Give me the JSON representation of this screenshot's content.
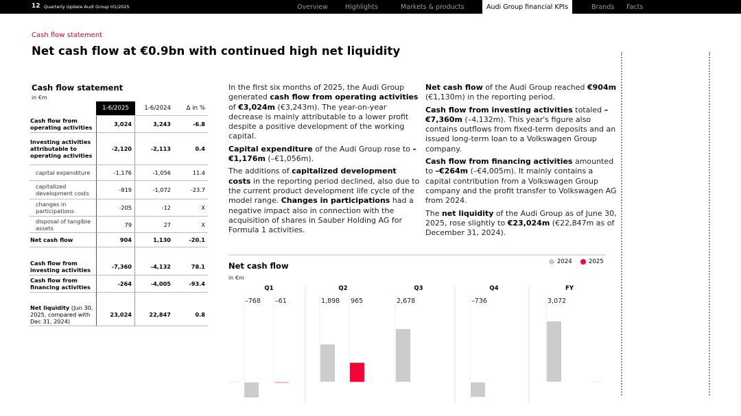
{
  "header": {
    "page_number": "12",
    "doc_title": "Quarterly Update Audi Group H1/2025",
    "nav": [
      "Overview",
      "Highlights",
      "Markets & products",
      "Audi Group financial KPIs",
      "Brands",
      "Facts"
    ],
    "active_nav": "Audi Group financial KPIs"
  },
  "section_label": "Cash flow statement",
  "page_title": "Net cash flow at €0.9bn with continued high net liquidity",
  "table": {
    "title": "Cash flow statement",
    "unit": "in €m",
    "headers": [
      "1-6/2025",
      "1-6/2024",
      "Δ in %"
    ],
    "rows": [
      {
        "label": "Cash flow from operating activities",
        "values": [
          "3,024",
          "3,243",
          "-6.8"
        ],
        "type": "b"
      },
      {
        "label": "Investing activities attributable to operating activities",
        "values": [
          "-2,120",
          "-2,113",
          "0.4"
        ],
        "type": "b"
      },
      {
        "label": "capital expenditure",
        "values": [
          "-1,176",
          "-1,056",
          "11.4"
        ],
        "type": "sub"
      },
      {
        "label": "capitalized development costs",
        "values": [
          "-819",
          "-1,072",
          "-23.7"
        ],
        "type": "sub"
      },
      {
        "label": "changes in participations",
        "values": [
          "-205",
          "-12",
          "X"
        ],
        "type": "sub"
      },
      {
        "label": "disposal of tangible assets",
        "values": [
          "79",
          "27",
          "X"
        ],
        "type": "sub"
      },
      {
        "label": "Net cash flow",
        "values": [
          "904",
          "1,130",
          "-20.1"
        ],
        "type": "b"
      },
      {
        "type": "gap"
      },
      {
        "label": "Cash flow from investing activities",
        "values": [
          "-7,360",
          "-4,132",
          "78.1"
        ],
        "type": "b"
      },
      {
        "label": "Cash flow from financing activities",
        "values": [
          "-264",
          "-4,005",
          "-93.4"
        ],
        "type": "b"
      },
      {
        "type": "gap"
      },
      {
        "label": "Net liquidity",
        "label_suffix": " (Jun 30, 2025, compared with Dec 31, 2024)",
        "values": [
          "23,024",
          "22,847",
          "0.8"
        ],
        "type": "b"
      }
    ]
  },
  "text_col1": [
    [
      {
        "t": "In the first six months of 2025, the Audi Group generated "
      },
      {
        "t": "cash flow from operating activities",
        "b": true
      },
      {
        "t": " of "
      },
      {
        "t": "€3,024m",
        "b": true
      },
      {
        "t": " (€3,243m). The year-on-year decrease is mainly attributable to a lower profit despite a positive development of the working capital."
      }
    ],
    [
      {
        "t": "Capital expenditure",
        "b": true
      },
      {
        "t": " of the Audi Group rose to "
      },
      {
        "t": "–€1,176m",
        "b": true
      },
      {
        "t": " (–€1,056m)."
      }
    ],
    [
      {
        "t": "The additions of "
      },
      {
        "t": "capitalized development costs",
        "b": true
      },
      {
        "t": " in the reporting period declined, also due to the current product development life cycle of the model range. "
      },
      {
        "t": "Changes in participations",
        "b": true
      },
      {
        "t": " had a negative impact also in connection with the acquisition of shares in Sauber Holding AG for Formula 1 activities."
      }
    ]
  ],
  "text_col2": [
    [
      {
        "t": "Net cash flow",
        "b": true
      },
      {
        "t": " of the Audi Group reached "
      },
      {
        "t": "€904m",
        "b": true
      },
      {
        "t": " (€1,130m) in the reporting period."
      }
    ],
    [
      {
        "t": "Cash flow from investing activities",
        "b": true
      },
      {
        "t": " totaled "
      },
      {
        "t": "–€7,360m",
        "b": true
      },
      {
        "t": " (–4,132m). This year's figure also contains outflows from fixed-term deposits and an issued long-term loan to a Volkswagen Group company."
      }
    ],
    [
      {
        "t": "Cash flow from financing activities",
        "b": true
      },
      {
        "t": " amounted to "
      },
      {
        "t": "–€264m",
        "b": true
      },
      {
        "t": " (–€4,005m). It mainly contains a capital contribution from a Volkswagen Group company and the profit transfer to Volkswagen AG from 2024."
      }
    ],
    [
      {
        "t": "The "
      },
      {
        "t": "net liquidity",
        "b": true
      },
      {
        "t": " of the Audi Group as of June 30, 2025, rose slightly to "
      },
      {
        "t": "€23,024m",
        "b": true
      },
      {
        "t": " (€22,847m as of December 31, 2024)."
      }
    ]
  ],
  "chart_data": {
    "type": "bar",
    "title": "Net cash flow",
    "ylabel": "in €m",
    "categories": [
      "Q1",
      "Q2",
      "Q3",
      "Q4",
      "FY"
    ],
    "series": [
      {
        "name": "2024",
        "color": "#cccccc",
        "values": [
          -768,
          1898,
          2678,
          -736,
          3072
        ],
        "labels": [
          "–768",
          "1,898",
          "2,678",
          "–736",
          "3,072"
        ]
      },
      {
        "name": "2025",
        "color": "#f50537",
        "values": [
          -61,
          965,
          null,
          null,
          null
        ],
        "labels": [
          "–61",
          "965",
          null,
          null,
          null
        ]
      }
    ],
    "legend": "top-right",
    "grid": false
  },
  "colors": {
    "accent": "#f50537",
    "bar_2024": "#cccccc",
    "section": "#e4002b"
  }
}
